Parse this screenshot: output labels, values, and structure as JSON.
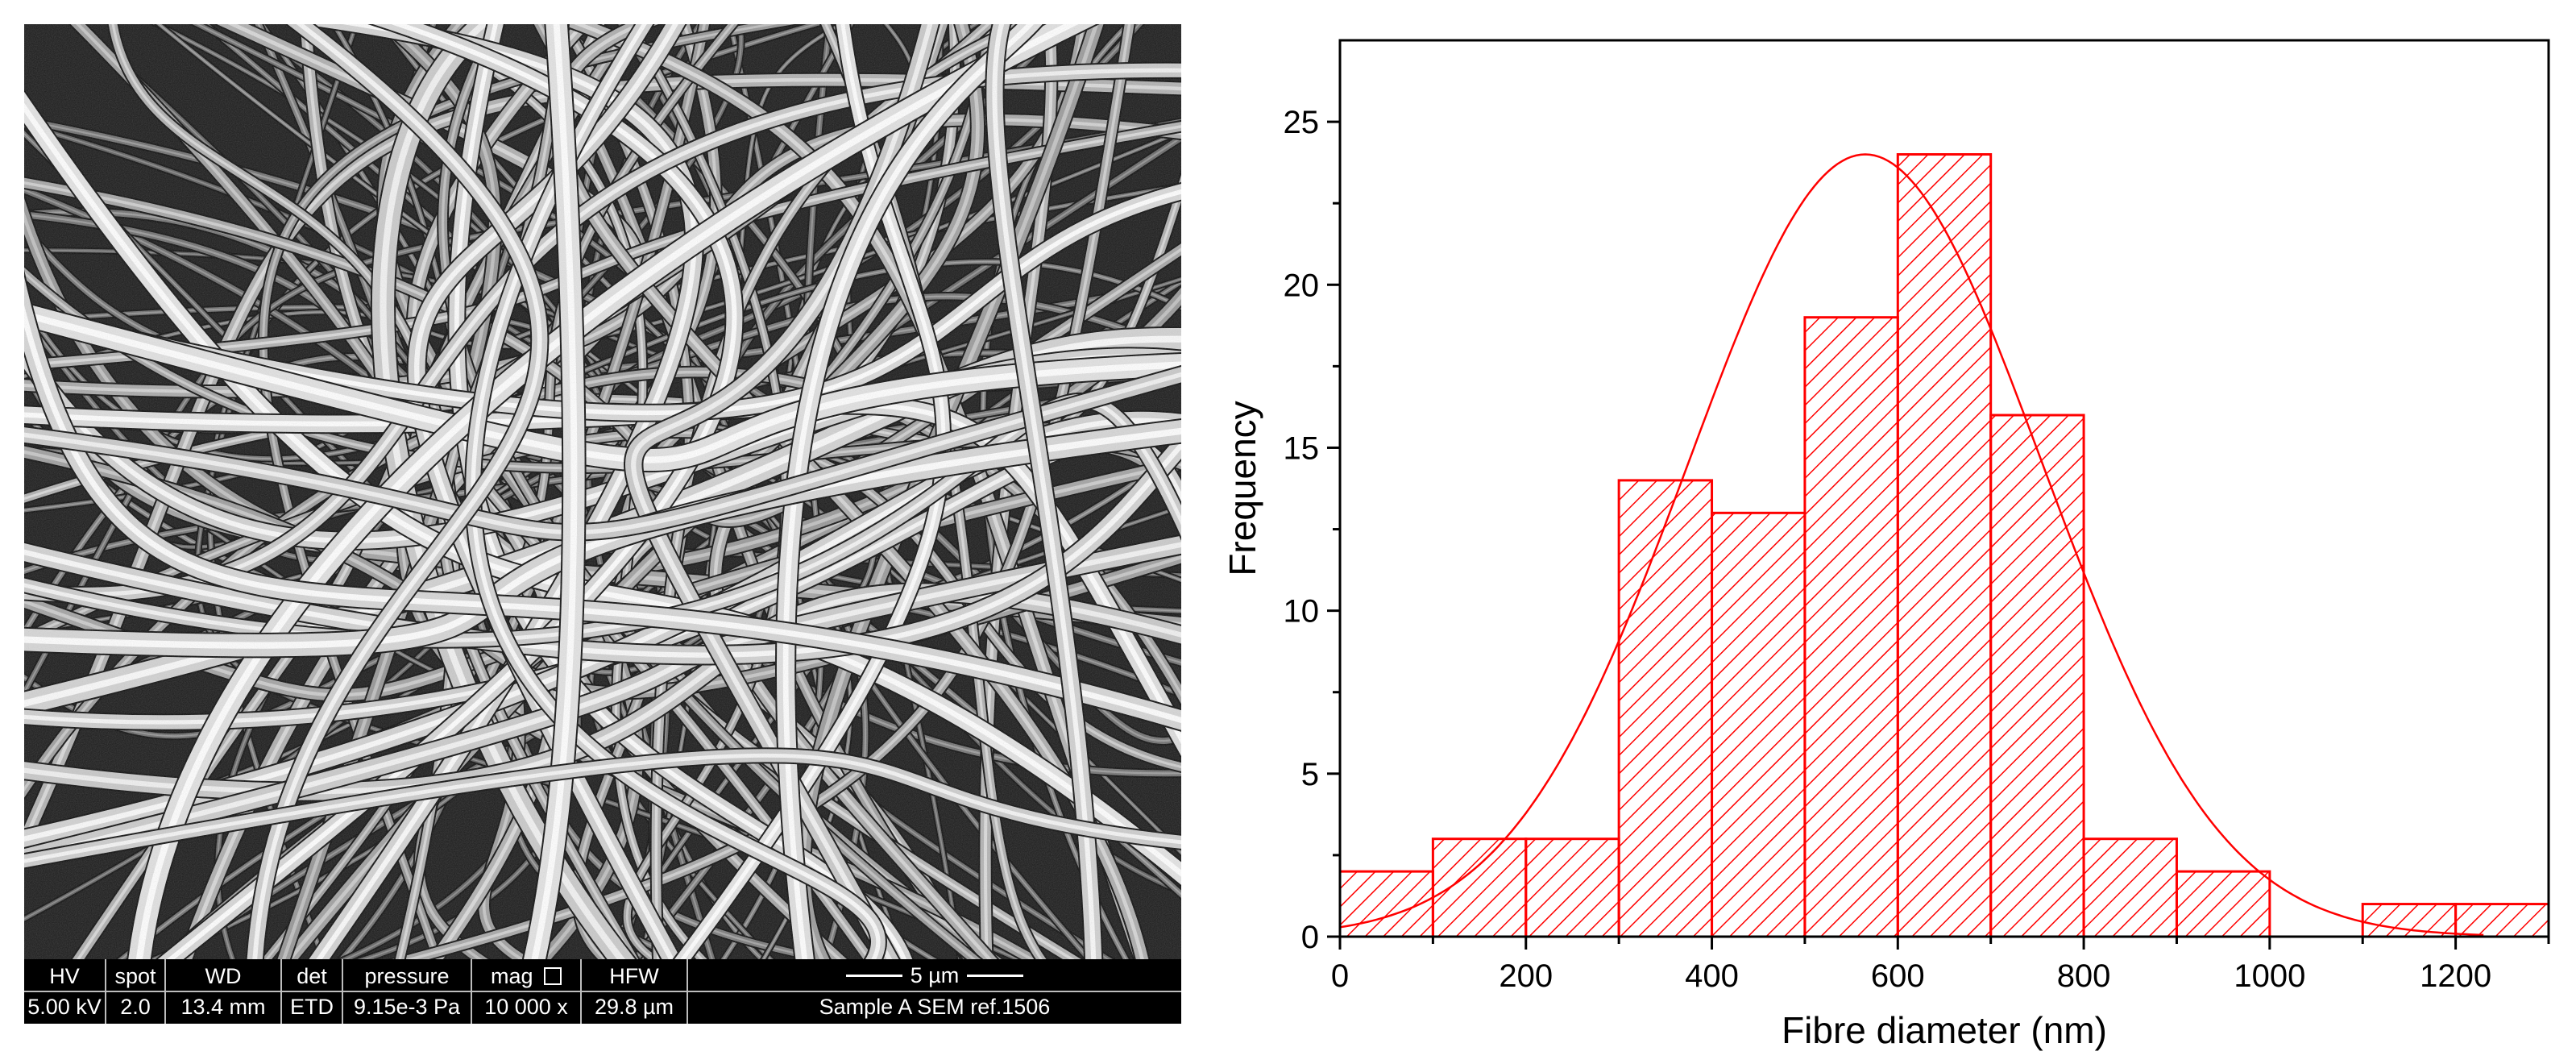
{
  "sem": {
    "databar": {
      "headers": [
        "HV",
        "spot",
        "WD",
        "det",
        "pressure",
        "mag",
        "HFW"
      ],
      "values": [
        "5.00 kV",
        "2.0",
        "13.4 mm",
        "ETD",
        "9.15e-3 Pa",
        "10 000 x",
        "29.8 µm"
      ],
      "scale_label": "5 µm",
      "sample_label": "Sample A SEM ref.1506"
    }
  },
  "chart_data": {
    "type": "bar",
    "bin_edges": [
      0,
      100,
      200,
      300,
      400,
      500,
      600,
      700,
      800,
      900,
      1000,
      1100,
      1200,
      1300
    ],
    "values": [
      2,
      3,
      3,
      14,
      13,
      19,
      24,
      16,
      3,
      2,
      0,
      1,
      1
    ],
    "fit_curve": {
      "type": "gaussian",
      "peak": 24,
      "mean": 565,
      "sigma": 190,
      "x_range": [
        0,
        1230
      ]
    },
    "xlabel": "Fibre diameter (nm)",
    "ylabel": "Frequency",
    "xlim": [
      0,
      1300
    ],
    "ylim": [
      0,
      27.5
    ],
    "x_ticks": [
      0,
      200,
      400,
      600,
      800,
      1000,
      1200
    ],
    "y_ticks": [
      0,
      5,
      10,
      15,
      20,
      25
    ],
    "color": "#ff0000",
    "bar_fill": "hatched"
  }
}
